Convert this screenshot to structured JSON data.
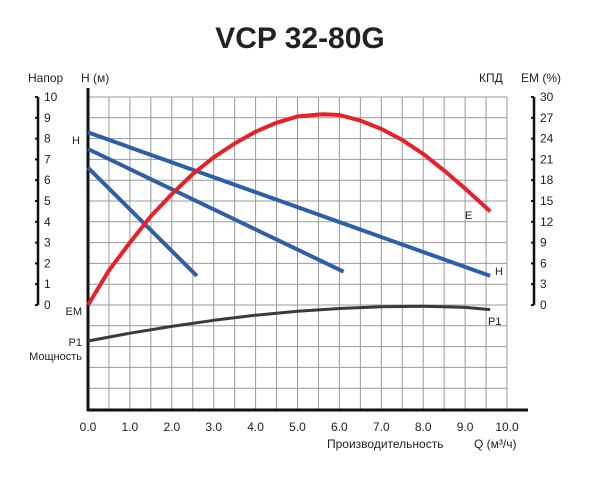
{
  "chart_data": {
    "type": "line",
    "title": "VCP 32-80G",
    "xlabel": "Производительность",
    "xunit": "Q (м³/ч)",
    "xlim": [
      0,
      10
    ],
    "xticks": [
      "0.0",
      "1.0",
      "2.0",
      "3.0",
      "4.0",
      "5.0",
      "6.0",
      "7.0",
      "8.0",
      "9.0",
      "10.0"
    ],
    "grid": true,
    "left_axis": {
      "label": "Напор",
      "unit": "H (м)",
      "ylim": [
        0,
        10
      ],
      "ticks": [
        "0",
        "1",
        "2",
        "3",
        "4",
        "5",
        "6",
        "7",
        "8",
        "9",
        "10"
      ]
    },
    "right_axis": {
      "label": "КПД",
      "unit": "EM (%)",
      "ylim": [
        0,
        30
      ],
      "ticks": [
        "0",
        "3",
        "6",
        "9",
        "12",
        "15",
        "18",
        "21",
        "24",
        "27",
        "30"
      ]
    },
    "side_labels": {
      "head": "H",
      "efficiency": "EM",
      "power": "P1",
      "power_label": "Мощность"
    },
    "curve_labels": {
      "efficiency": "E",
      "head": "H",
      "power": "P1"
    },
    "colors": {
      "head": "#2e5fa8",
      "efficiency": "#e8202a",
      "power": "#3a3a3a"
    },
    "series": [
      {
        "name": "H",
        "axis": "left",
        "color": "#2e5fa8",
        "x": [
          0,
          9.6
        ],
        "y": [
          8.3,
          1.4
        ]
      },
      {
        "axis": "left",
        "color": "#2e5fa8",
        "x": [
          0,
          6.1
        ],
        "y": [
          7.5,
          1.6
        ]
      },
      {
        "axis": "left",
        "color": "#2e5fa8",
        "x": [
          0,
          2.6
        ],
        "y": [
          6.6,
          1.4
        ]
      },
      {
        "name": "E",
        "axis": "right",
        "color": "#e8202a",
        "x": [
          0,
          0.5,
          1,
          1.5,
          2,
          2.5,
          3,
          3.5,
          4,
          4.5,
          5,
          5.6,
          6,
          6.5,
          7,
          7.5,
          8,
          8.5,
          9,
          9.6
        ],
        "y": [
          0,
          5,
          9,
          12.8,
          16,
          18.9,
          21.3,
          23.3,
          25,
          26.3,
          27.2,
          27.5,
          27.4,
          26.6,
          25.4,
          23.8,
          21.8,
          19.4,
          16.8,
          13.5
        ]
      },
      {
        "name": "P1",
        "axis": "power",
        "color": "#3a3a3a",
        "x": [
          0,
          1,
          2,
          3,
          4,
          5,
          6,
          7,
          8,
          9,
          9.6
        ],
        "y": [
          0,
          0.28,
          0.52,
          0.74,
          0.92,
          1.06,
          1.16,
          1.22,
          1.24,
          1.2,
          1.12
        ]
      }
    ]
  }
}
